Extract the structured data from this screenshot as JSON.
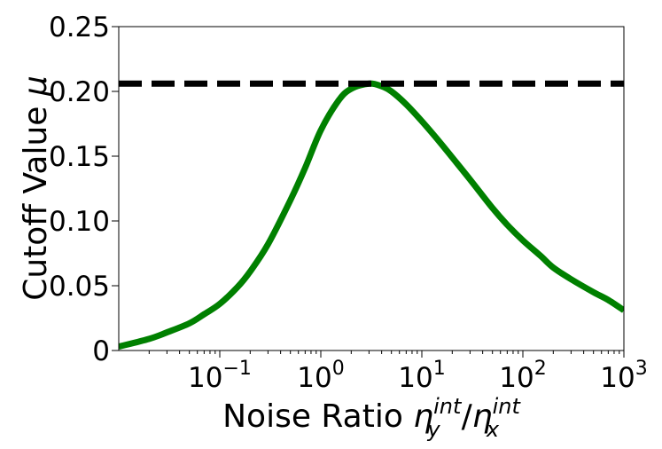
{
  "chart_data": {
    "type": "line",
    "x_scale": "log",
    "xlim": [
      0.01,
      1000
    ],
    "ylim": [
      0,
      0.25
    ],
    "x_ticks": [
      {
        "value": 0.1,
        "base": "10",
        "exp": "−1"
      },
      {
        "value": 1,
        "base": "10",
        "exp": "0"
      },
      {
        "value": 10,
        "base": "10",
        "exp": "1"
      },
      {
        "value": 100,
        "base": "10",
        "exp": "2"
      },
      {
        "value": 1000,
        "base": "10",
        "exp": "3"
      }
    ],
    "y_ticks": [
      {
        "value": 0,
        "label": "0"
      },
      {
        "value": 0.05,
        "label": "0.05"
      },
      {
        "value": 0.1,
        "label": "0.10"
      },
      {
        "value": 0.15,
        "label": "0.15"
      },
      {
        "value": 0.2,
        "label": "0.20"
      },
      {
        "value": 0.25,
        "label": "0.25"
      }
    ],
    "xlabel": {
      "prefix": "Noise Ratio ",
      "eta": "η",
      "sup": "int",
      "sub_y": "y",
      "slash": "/",
      "sub_x": "x"
    },
    "ylabel": {
      "text": "Cutoff Value ",
      "symbol": "μ"
    },
    "grid": false,
    "series": [
      {
        "style": "solid",
        "color": "#008000",
        "x": [
          0.01,
          0.02,
          0.03,
          0.05,
          0.07,
          0.1,
          0.15,
          0.2,
          0.3,
          0.5,
          0.7,
          1,
          1.5,
          2,
          3,
          4,
          5,
          7,
          10,
          15,
          20,
          30,
          50,
          70,
          100,
          150,
          200,
          300,
          500,
          700,
          1000
        ],
        "y": [
          0.003,
          0.009,
          0.014,
          0.021,
          0.028,
          0.036,
          0.049,
          0.061,
          0.082,
          0.116,
          0.141,
          0.17,
          0.193,
          0.202,
          0.206,
          0.204,
          0.2,
          0.19,
          0.177,
          0.161,
          0.149,
          0.132,
          0.11,
          0.097,
          0.085,
          0.073,
          0.064,
          0.055,
          0.045,
          0.039,
          0.031
        ]
      },
      {
        "style": "dashed",
        "color": "#000000",
        "x": [
          0.01,
          1000
        ],
        "y": [
          0.206,
          0.206
        ]
      }
    ]
  }
}
